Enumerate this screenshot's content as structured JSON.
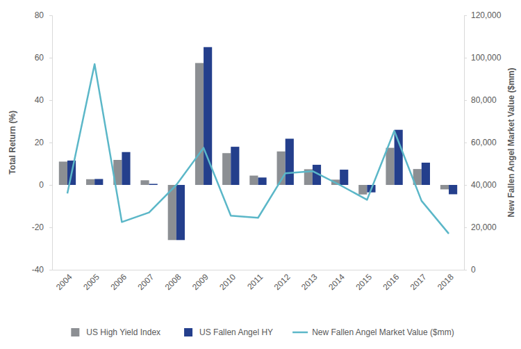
{
  "chart_data": {
    "type": "bar",
    "y_label": "Total Return (%)",
    "y2_label": "New Fallen Angel Market Value ($mm)",
    "categories": [
      "2004",
      "2005",
      "2006",
      "2007",
      "2008",
      "2009",
      "2010",
      "2011",
      "2012",
      "2013",
      "2014",
      "2015",
      "2016",
      "2017",
      "2018"
    ],
    "series": [
      {
        "name": "US High Yield Index",
        "type": "bar",
        "color": "#8c8f93",
        "values": [
          11,
          2.7,
          11.8,
          2.2,
          -26,
          57.5,
          15,
          4.4,
          15.8,
          7.4,
          2.5,
          -4.5,
          17.5,
          7.5,
          -2.1
        ]
      },
      {
        "name": "US Fallen Angel HY",
        "type": "bar",
        "color": "#243f8c",
        "values": [
          11.5,
          2.8,
          15.5,
          0.5,
          -26,
          65,
          18,
          3.5,
          21.8,
          9.5,
          7.2,
          -3.5,
          26,
          10.5,
          -4.4
        ]
      },
      {
        "name": "New Fallen Angel Market Value ($mm)",
        "type": "line",
        "axis": "y2",
        "color": "#5bb7c8",
        "values": [
          36000,
          97000,
          22500,
          27000,
          40000,
          57500,
          25500,
          24500,
          45500,
          46500,
          40000,
          33000,
          65500,
          32500,
          17000
        ]
      }
    ],
    "ylim": [
      -40,
      80
    ],
    "yticks": [
      -40,
      -20,
      0,
      20,
      40,
      60,
      80
    ],
    "y2lim": [
      0,
      120000
    ],
    "y2ticks": [
      0,
      {
        "value": 20000,
        "label": "20,000"
      },
      {
        "value": 40000,
        "label": "40,000"
      },
      {
        "value": 60000,
        "label": "60,000"
      },
      {
        "value": 80000,
        "label": "80,000"
      },
      {
        "value": 100000,
        "label": "100,000"
      },
      {
        "value": 120000,
        "label": "120,000"
      }
    ],
    "grid": false,
    "legend": "bottom"
  }
}
